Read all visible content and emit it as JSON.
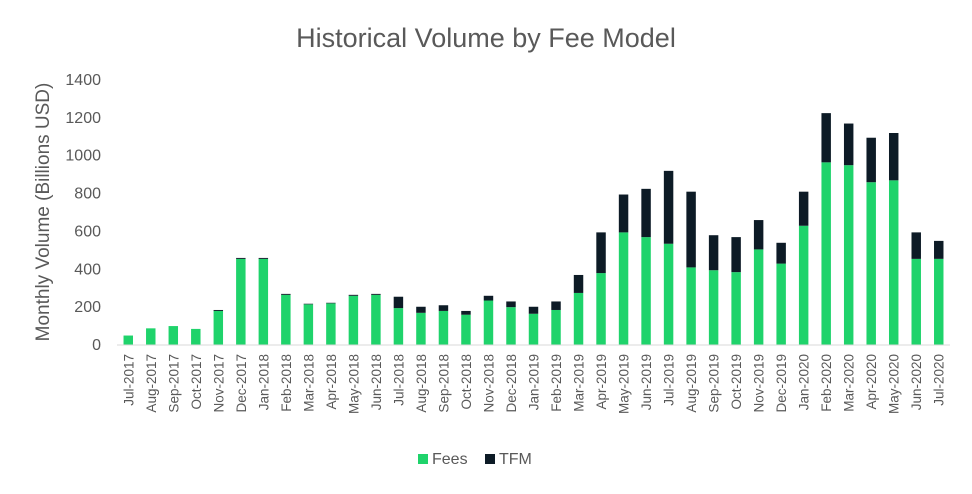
{
  "chart_data": {
    "type": "bar",
    "stacked": true,
    "title": "Historical Volume by Fee Model",
    "ylabel": "Monthly Volume (Billions USD)",
    "xlabel": "",
    "ylim": [
      0,
      1400
    ],
    "yticks": [
      0,
      200,
      400,
      600,
      800,
      1000,
      1200,
      1400
    ],
    "grid": false,
    "legend": "bottom",
    "categories": [
      "Jul-2017",
      "Aug-2017",
      "Sep-2017",
      "Oct-2017",
      "Nov-2017",
      "Dec-2017",
      "Jan-2018",
      "Feb-2018",
      "Mar-2018",
      "Apr-2018",
      "May-2018",
      "Jun-2018",
      "Jul-2018",
      "Aug-2018",
      "Sep-2018",
      "Oct-2018",
      "Nov-2018",
      "Dec-2018",
      "Jan-2019",
      "Feb-2019",
      "Mar-2019",
      "Apr-2019",
      "May-2019",
      "Jun-2019",
      "Jul-2019",
      "Aug-2019",
      "Sep-2019",
      "Oct-2019",
      "Nov-2019",
      "Dec-2019",
      "Jan-2020",
      "Feb-2020",
      "Mar-2020",
      "Apr-2020",
      "May-2020",
      "Jun-2020",
      "Jul-2020"
    ],
    "series": [
      {
        "name": "Fees",
        "color": "#1fd36b",
        "values": [
          50,
          88,
          100,
          85,
          180,
          455,
          455,
          265,
          215,
          220,
          260,
          265,
          195,
          170,
          180,
          160,
          235,
          200,
          165,
          185,
          275,
          380,
          595,
          570,
          535,
          410,
          395,
          385,
          505,
          430,
          630,
          965,
          950,
          860,
          870,
          455,
          455
        ]
      },
      {
        "name": "TFM",
        "color": "#0d1b26",
        "values": [
          0,
          0,
          0,
          0,
          5,
          5,
          5,
          5,
          3,
          3,
          5,
          5,
          60,
          32,
          30,
          20,
          25,
          30,
          37,
          45,
          95,
          215,
          200,
          255,
          385,
          400,
          185,
          185,
          155,
          110,
          180,
          260,
          220,
          235,
          250,
          140,
          95
        ]
      }
    ]
  }
}
